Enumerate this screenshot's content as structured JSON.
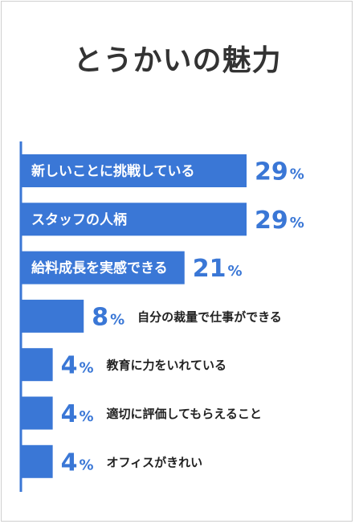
{
  "chart_data": {
    "type": "bar",
    "orientation": "horizontal",
    "title": "とうかいの魅力",
    "unit": "%",
    "categories": [
      "新しいことに挑戦している",
      "スタッフの人柄",
      "給料成長を実感できる",
      "自分の裁量で仕事ができる",
      "教育に力をいれている",
      "適切に評価してもらえること",
      "オフィスがきれい"
    ],
    "values": [
      29,
      29,
      21,
      8,
      4,
      4,
      4
    ],
    "color": "#3a77d6",
    "grid": false,
    "legend": "none"
  }
}
